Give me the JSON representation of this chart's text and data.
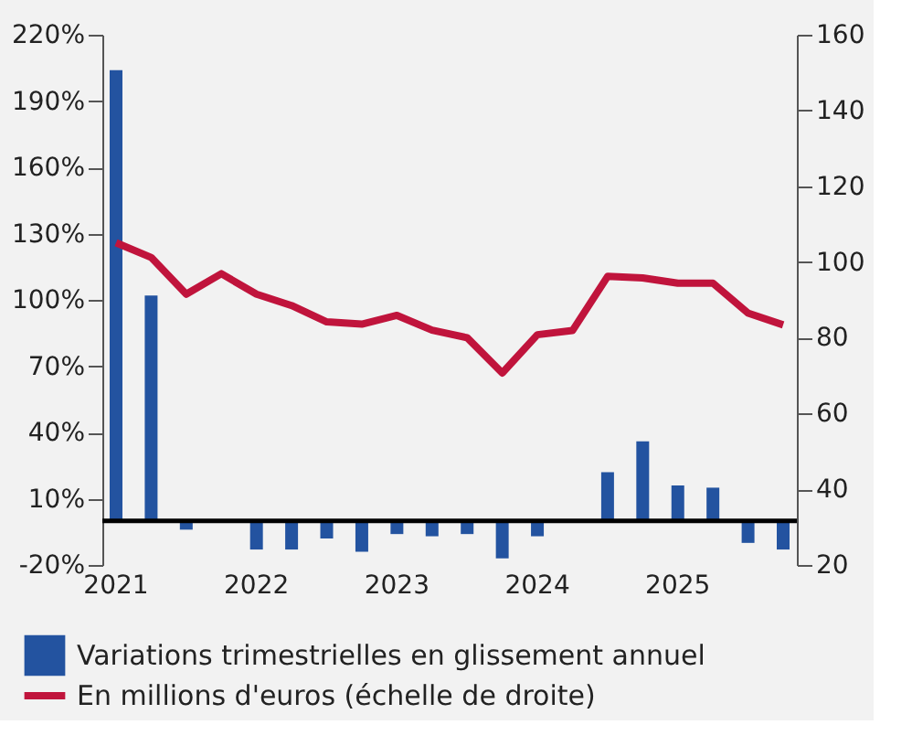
{
  "chart_data": {
    "type": "bar",
    "categories": [
      "2021",
      null,
      null,
      null,
      "2022",
      null,
      null,
      null,
      "2023",
      null,
      null,
      null,
      "2024",
      null,
      null,
      null,
      "2025",
      null,
      null,
      null
    ],
    "series": [
      {
        "name": "Variations trimestrielles en glissement annuel",
        "color": "#2353a0",
        "values": [
          204,
          102,
          -4,
          0,
          -13,
          -13,
          -8,
          -14,
          -6,
          -7,
          -6,
          -17,
          -7,
          0,
          22,
          36,
          16,
          15,
          -10,
          -13
        ]
      },
      {
        "name": "En millions d'euros (échelle de droite)",
        "color": "#c0143c",
        "type": "line",
        "axis": "y2",
        "values": [
          105.1,
          101.2,
          91.5,
          96.9,
          91.5,
          88.5,
          84.2,
          83.6,
          85.9,
          82.0,
          80.0,
          70.7,
          80.8,
          81.9,
          96.2,
          95.8,
          94.4,
          94.4,
          86.5,
          83.4
        ]
      }
    ],
    "ylim": [
      -20,
      220
    ],
    "yticks": [
      {
        "value": -20,
        "label": "-20%"
      },
      {
        "value": 10,
        "label": "10%"
      },
      {
        "value": 40,
        "label": "40%"
      },
      {
        "value": 70,
        "label": "70%"
      },
      {
        "value": 100,
        "label": "100%"
      },
      {
        "value": 130,
        "label": "130%"
      },
      {
        "value": 160,
        "label": "160%"
      },
      {
        "value": 190,
        "label": "190%"
      },
      {
        "value": 220,
        "label": "220%"
      }
    ],
    "y2lim": [
      20,
      160
    ],
    "y2ticks": [
      20,
      40,
      60,
      80,
      100,
      120,
      140,
      160
    ],
    "grid": false,
    "legend": "bottom",
    "line_style": "solid",
    "marker": "none"
  }
}
